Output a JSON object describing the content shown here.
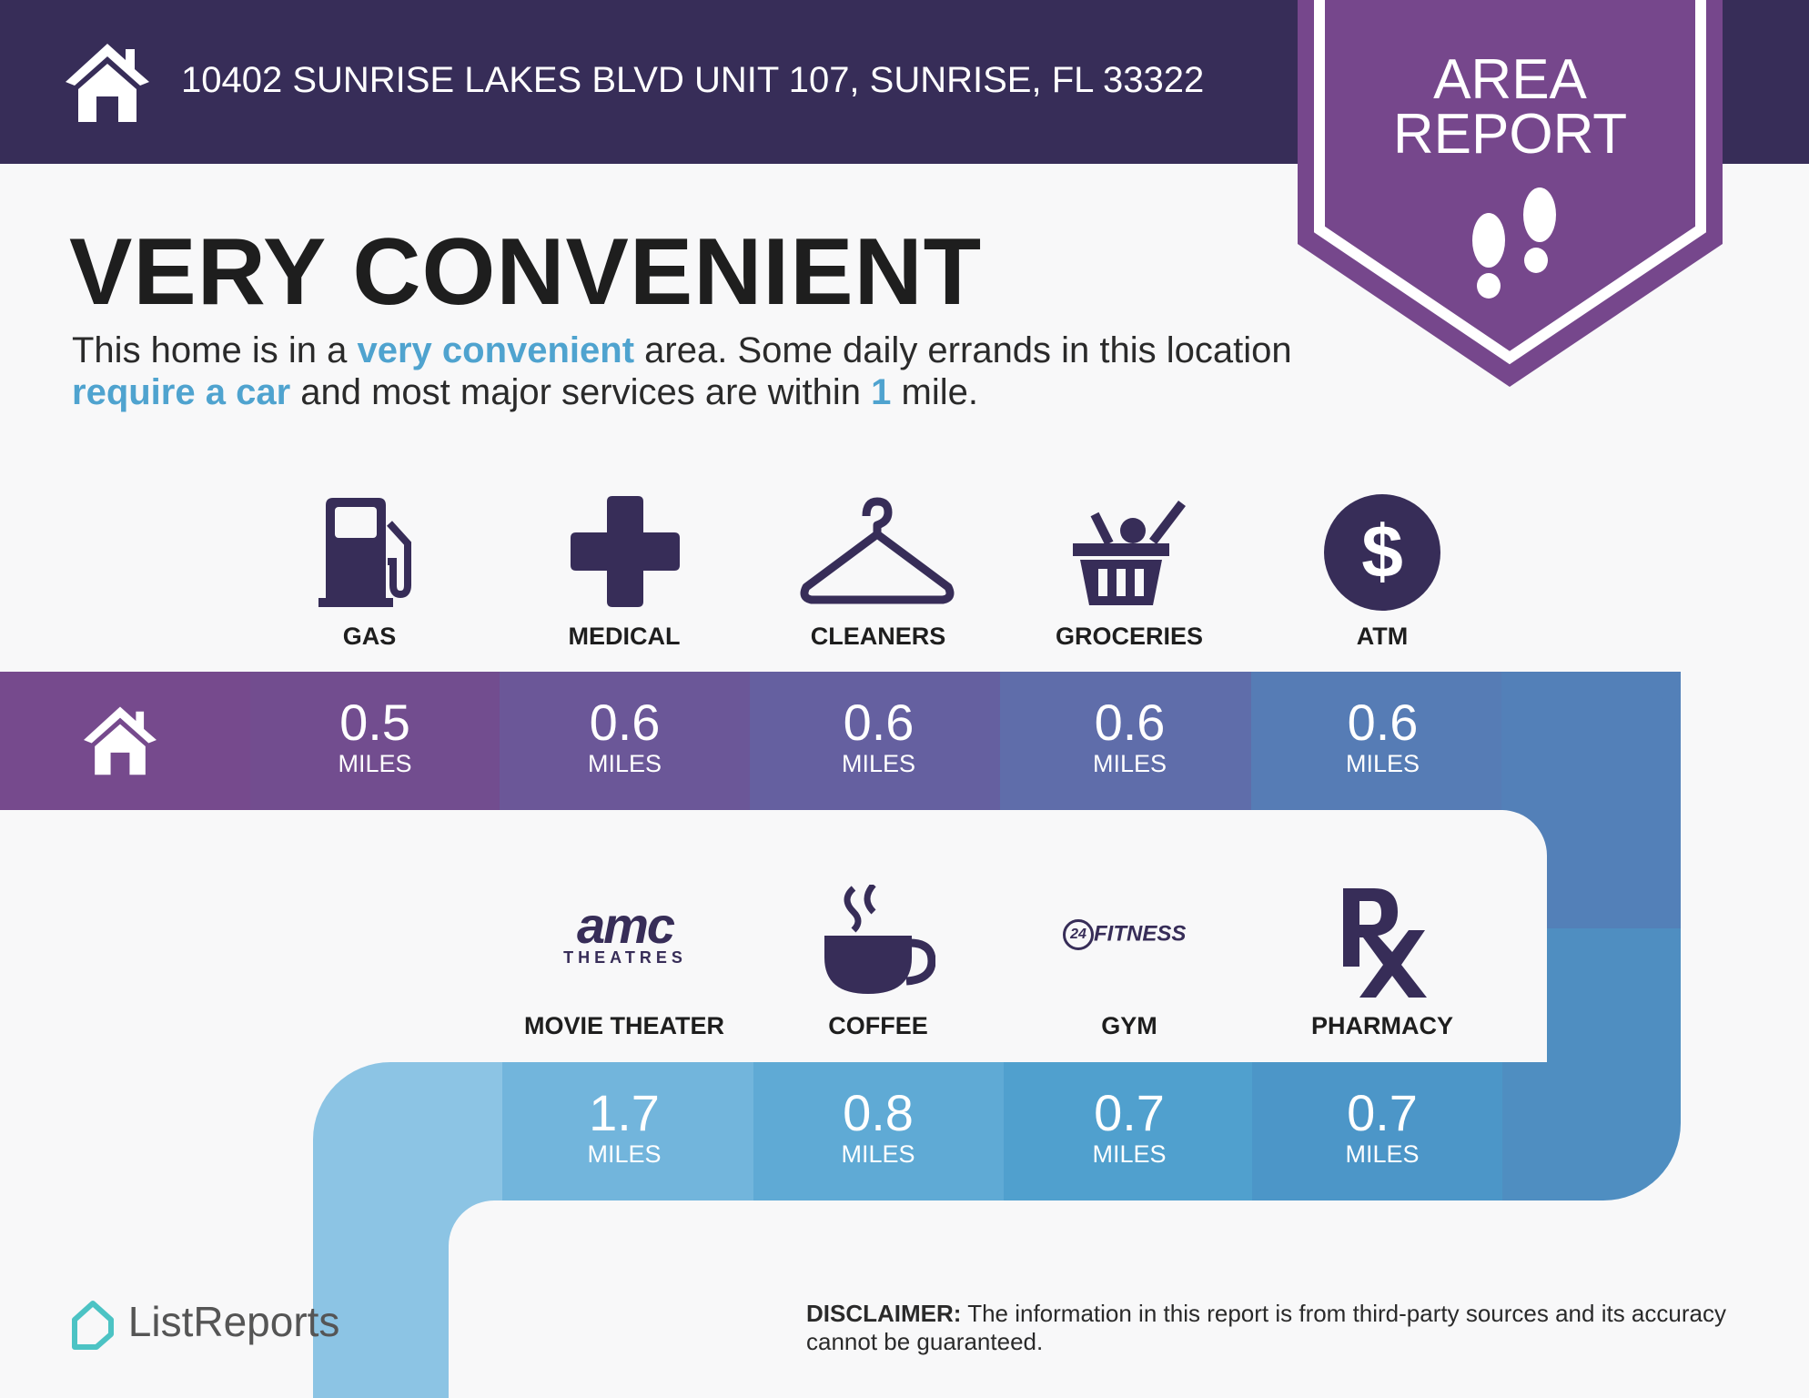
{
  "header": {
    "address": "10402 SUNRISE LAKES BLVD UNIT 107, SUNRISE, FL 33322",
    "badge_line1": "AREA",
    "badge_line2": "REPORT",
    "icons": [
      "home-icon",
      "footprints-icon"
    ]
  },
  "rating": {
    "title": "VERY CONVENIENT",
    "p1": "This home is in a ",
    "h1": "very convenient",
    "p2": " area. Some daily errands in this location ",
    "h2": "require a car",
    "p3": " and most major services are within ",
    "h3": "1",
    "p4": " mile."
  },
  "unit": "MILES",
  "services_top": [
    {
      "label": "GAS",
      "value": "0.5",
      "icon": "gas-pump-icon"
    },
    {
      "label": "MEDICAL",
      "value": "0.6",
      "icon": "medical-cross-icon"
    },
    {
      "label": "CLEANERS",
      "value": "0.6",
      "icon": "hanger-icon"
    },
    {
      "label": "GROCERIES",
      "value": "0.6",
      "icon": "grocery-basket-icon"
    },
    {
      "label": "ATM",
      "value": "0.6",
      "icon": "dollar-icon"
    }
  ],
  "services_bottom": [
    {
      "label": "MOVIE THEATER",
      "value": "1.7",
      "icon": "amc-logo",
      "logo_text": "amc",
      "logo_sub": "THEATRES"
    },
    {
      "label": "COFFEE",
      "value": "0.8",
      "icon": "coffee-cup-icon"
    },
    {
      "label": "GYM",
      "value": "0.7",
      "icon": "24-hour-fitness-logo",
      "logo_text": "FITNESS"
    },
    {
      "label": "PHARMACY",
      "value": "0.7",
      "icon": "rx-icon"
    }
  ],
  "footer": {
    "brand": "ListReports",
    "disclaimer_label": "DISCLAIMER:",
    "disclaimer": " The information in this report is from third-party sources and its accuracy cannot be guaranteed."
  },
  "colors": {
    "header": "#372d58",
    "ribbon": "#76478c",
    "highlight": "#4fa3cf",
    "icon": "#372d58"
  }
}
